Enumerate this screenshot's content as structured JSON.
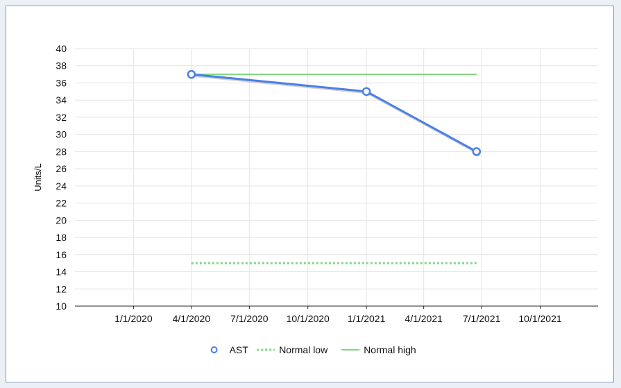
{
  "chart_data": {
    "type": "line",
    "xlabel": "",
    "ylabel": "Units/L",
    "ylim": [
      10,
      40
    ],
    "yticks": [
      10,
      12,
      14,
      16,
      18,
      20,
      22,
      24,
      26,
      28,
      30,
      32,
      34,
      36,
      38,
      40
    ],
    "xlim": [
      "2019-10-01",
      "2021-12-31"
    ],
    "xticks": [
      "1/1/2020",
      "4/1/2020",
      "7/1/2020",
      "10/1/2020",
      "1/1/2021",
      "4/1/2021",
      "7/1/2021",
      "10/1/2021"
    ],
    "grid": true,
    "legend_position": "bottom",
    "series": [
      {
        "name": "AST",
        "color": "#4a7fe6",
        "style": "solid-with-markers",
        "points": [
          {
            "x": "2020-04-01",
            "y": 37
          },
          {
            "x": "2021-01-01",
            "y": 35
          },
          {
            "x": "2021-06-23",
            "y": 28
          }
        ]
      },
      {
        "name": "Normal low",
        "color": "#7ed87e",
        "style": "dotted",
        "points": [
          {
            "x": "2020-04-01",
            "y": 15
          },
          {
            "x": "2021-06-23",
            "y": 15
          }
        ]
      },
      {
        "name": "Normal high",
        "color": "#7ed87e",
        "style": "solid",
        "points": [
          {
            "x": "2020-04-01",
            "y": 37
          },
          {
            "x": "2021-06-23",
            "y": 37
          }
        ]
      }
    ]
  }
}
